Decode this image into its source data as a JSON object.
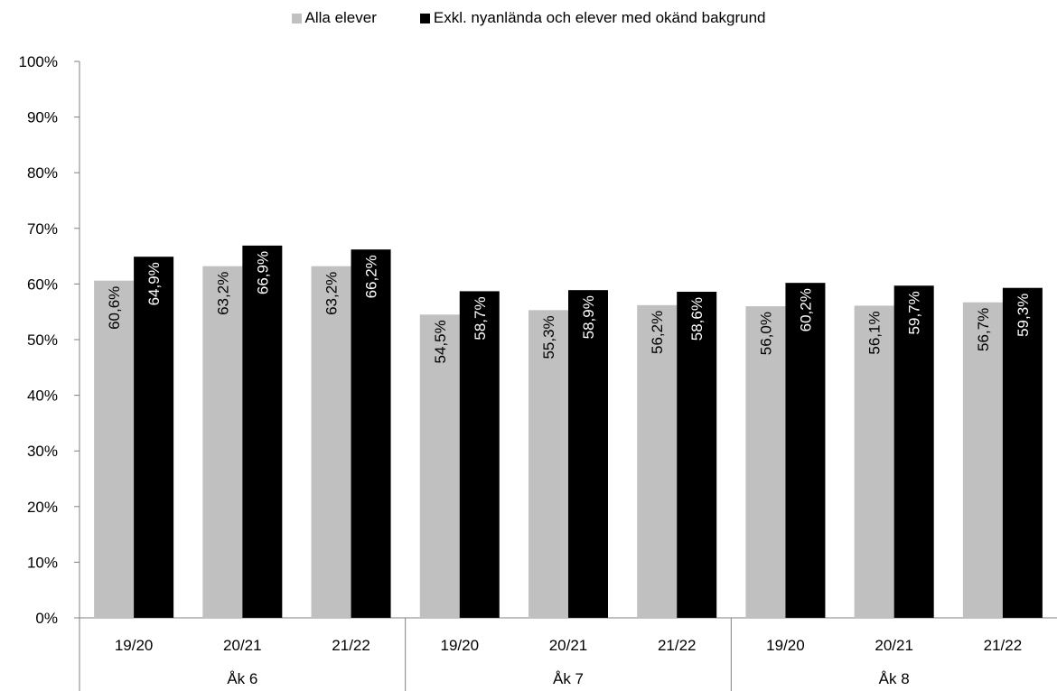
{
  "chart_data": {
    "type": "bar",
    "groups": [
      {
        "label": "Åk 6",
        "categories": [
          "19/20",
          "20/21",
          "21/22"
        ]
      },
      {
        "label": "Åk 7",
        "categories": [
          "19/20",
          "20/21",
          "21/22"
        ]
      },
      {
        "label": "Åk 8",
        "categories": [
          "19/20",
          "20/21",
          "21/22"
        ]
      }
    ],
    "series": [
      {
        "name": "Alla elever",
        "color": "#c0c0c0",
        "text_color": "#000000",
        "values": [
          60.6,
          63.2,
          63.2,
          54.5,
          55.3,
          56.2,
          56.0,
          56.1,
          56.7
        ],
        "labels": [
          "60,6%",
          "63,2%",
          "63,2%",
          "54,5%",
          "55,3%",
          "56,2%",
          "56,0%",
          "56,1%",
          "56,7%"
        ]
      },
      {
        "name": "Exkl. nyanlända och elever med okänd bakgrund",
        "color": "#000000",
        "text_color": "#ffffff",
        "values": [
          64.9,
          66.9,
          66.2,
          58.7,
          58.9,
          58.6,
          60.2,
          59.7,
          59.3
        ],
        "labels": [
          "64,9%",
          "66,9%",
          "66,2%",
          "58,7%",
          "58,9%",
          "58,6%",
          "60,2%",
          "59,7%",
          "59,3%"
        ]
      }
    ],
    "ylim": [
      0,
      100
    ],
    "yticks": [
      0,
      10,
      20,
      30,
      40,
      50,
      60,
      70,
      80,
      90,
      100
    ],
    "ytick_labels": [
      "0%",
      "10%",
      "20%",
      "30%",
      "40%",
      "50%",
      "60%",
      "70%",
      "80%",
      "90%",
      "100%"
    ],
    "legend_position": "top",
    "grid": false
  }
}
